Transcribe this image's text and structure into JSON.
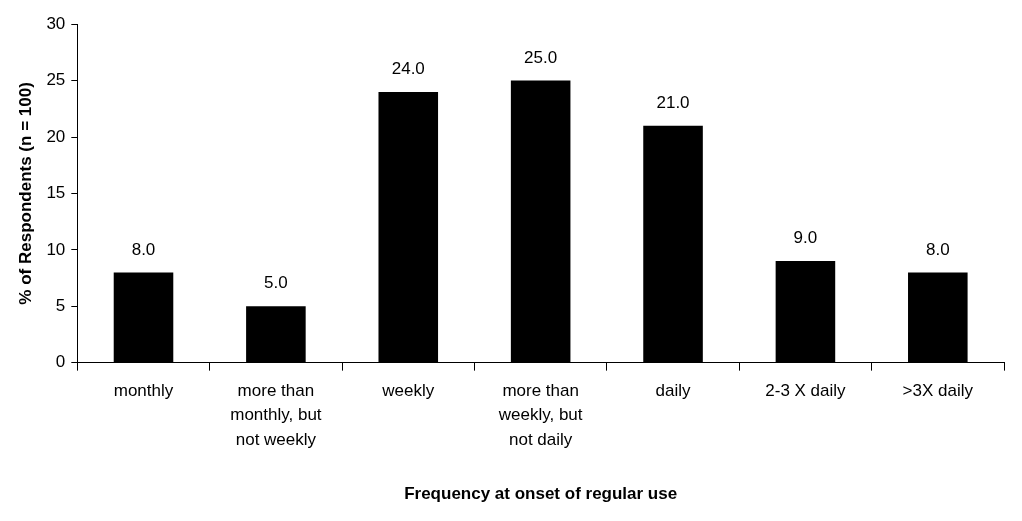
{
  "chart_data": {
    "type": "bar",
    "xlabel": "Frequency at onset of regular use",
    "ylabel": "% of Respondents (n = 100)",
    "categories": [
      "monthly",
      "more than monthly, but not weekly",
      "weekly",
      "more than weekly, but not daily",
      "daily",
      "2-3 X daily",
      ">3X daily"
    ],
    "values": [
      8,
      5,
      24,
      25,
      21,
      9,
      8
    ],
    "value_labels": [
      "8.0",
      "5.0",
      "24.0",
      "25.0",
      "21.0",
      "9.0",
      "8.0"
    ],
    "color": "#000000",
    "ylim": [
      0,
      30
    ],
    "yticks": [
      0,
      5,
      10,
      15,
      20,
      25,
      30
    ],
    "grid": false,
    "legend": false
  }
}
